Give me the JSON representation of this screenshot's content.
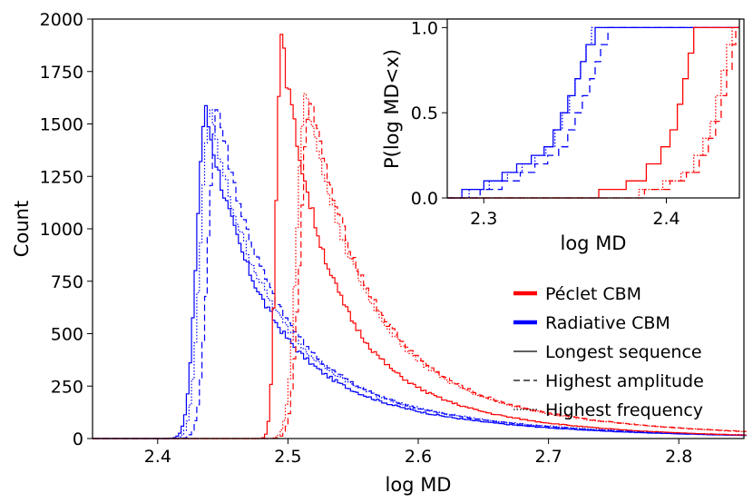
{
  "chart_data": {
    "type": "histogram-step",
    "main": {
      "xlabel": "log MD",
      "ylabel": "Count",
      "xlim": [
        2.35,
        2.85
      ],
      "ylim": [
        0,
        2000
      ],
      "xticks": [
        "2.4",
        "2.5",
        "2.6",
        "2.7",
        "2.8"
      ],
      "xtick_values": [
        2.4,
        2.5,
        2.6,
        2.7,
        2.8
      ],
      "yticks": [
        "0",
        "250",
        "500",
        "750",
        "1000",
        "1250",
        "1500",
        "1750",
        "2000"
      ],
      "ytick_values": [
        0,
        250,
        500,
        750,
        1000,
        1250,
        1500,
        1750,
        2000
      ],
      "series": [
        {
          "name": "Radiative CBM, Longest sequence",
          "color": "#0000ff",
          "style": "solid",
          "peak_x": 2.436,
          "peak_y": 1560,
          "rise": 0.007,
          "decay": 0.038
        },
        {
          "name": "Radiative CBM, Highest amplitude",
          "color": "#0000ff",
          "style": "dashed",
          "peak_x": 2.445,
          "peak_y": 1590,
          "rise": 0.007,
          "decay": 0.038
        },
        {
          "name": "Radiative CBM, Highest frequency",
          "color": "#0000ff",
          "style": "dotted",
          "peak_x": 2.439,
          "peak_y": 1560,
          "rise": 0.007,
          "decay": 0.04
        },
        {
          "name": "Péclet CBM, Longest sequence",
          "color": "#ff0000",
          "style": "solid",
          "peak_x": 2.494,
          "peak_y": 1905,
          "rise": 0.004,
          "decay": 0.032
        },
        {
          "name": "Péclet CBM, Highest amplitude",
          "color": "#ff0000",
          "style": "dashed",
          "peak_x": 2.516,
          "peak_y": 1630,
          "rise": 0.007,
          "decay": 0.04
        },
        {
          "name": "Péclet CBM, Highest frequency",
          "color": "#ff0000",
          "style": "dotted",
          "peak_x": 2.513,
          "peak_y": 1645,
          "rise": 0.007,
          "decay": 0.04
        }
      ]
    },
    "inset": {
      "type": "ecdf",
      "xlabel": "log MD",
      "ylabel": "P(log MD<x)",
      "xlim": [
        2.28,
        2.44
      ],
      "ylim": [
        0,
        1.05
      ],
      "xticks": [
        "2.3",
        "2.4"
      ],
      "xtick_values": [
        2.3,
        2.4
      ],
      "yticks": [
        "0.0",
        "0.5",
        "1.0"
      ],
      "ytick_values": [
        0.0,
        0.5,
        1.0
      ],
      "series": [
        {
          "name": "Radiative CBM, Longest sequence",
          "color": "#0000ff",
          "style": "solid",
          "x": [
            2.288,
            2.3,
            2.31,
            2.318,
            2.326,
            2.333,
            2.338,
            2.342,
            2.346,
            2.35,
            2.353,
            2.356,
            2.361
          ],
          "y": [
            0.05,
            0.1,
            0.15,
            0.2,
            0.25,
            0.3,
            0.4,
            0.5,
            0.6,
            0.7,
            0.8,
            0.9,
            1.0
          ]
        },
        {
          "name": "Radiative CBM, Highest amplitude",
          "color": "#0000ff",
          "style": "dashed",
          "x": [
            2.298,
            2.31,
            2.32,
            2.328,
            2.335,
            2.341,
            2.346,
            2.35,
            2.354,
            2.358,
            2.361,
            2.364,
            2.368
          ],
          "y": [
            0.05,
            0.1,
            0.15,
            0.2,
            0.25,
            0.3,
            0.4,
            0.5,
            0.6,
            0.7,
            0.8,
            0.9,
            1.0
          ]
        },
        {
          "name": "Radiative CBM, Highest frequency",
          "color": "#0000ff",
          "style": "dotted",
          "x": [
            2.292,
            2.303,
            2.313,
            2.321,
            2.328,
            2.334,
            2.339,
            2.343,
            2.347,
            2.35,
            2.353,
            2.356,
            2.359
          ],
          "y": [
            0.05,
            0.1,
            0.15,
            0.2,
            0.25,
            0.3,
            0.4,
            0.5,
            0.6,
            0.7,
            0.8,
            0.9,
            1.0
          ]
        },
        {
          "name": "Péclet CBM, Longest sequence",
          "color": "#ff0000",
          "style": "solid",
          "x": [
            2.363,
            2.378,
            2.389,
            2.397,
            2.402,
            2.406,
            2.409,
            2.412,
            2.415
          ],
          "y": [
            0.05,
            0.1,
            0.2,
            0.3,
            0.4,
            0.55,
            0.7,
            0.85,
            1.0
          ]
        },
        {
          "name": "Péclet CBM, Highest amplitude",
          "color": "#ff0000",
          "style": "dashed",
          "x": [
            2.388,
            2.402,
            2.411,
            2.418,
            2.423,
            2.427,
            2.43,
            2.433,
            2.436,
            2.438
          ],
          "y": [
            0.05,
            0.1,
            0.15,
            0.25,
            0.35,
            0.45,
            0.6,
            0.75,
            0.9,
            1.0
          ]
        },
        {
          "name": "Péclet CBM, Highest frequency",
          "color": "#ff0000",
          "style": "dotted",
          "x": [
            2.385,
            2.398,
            2.408,
            2.415,
            2.42,
            2.424,
            2.427,
            2.43,
            2.433,
            2.436
          ],
          "y": [
            0.05,
            0.1,
            0.15,
            0.25,
            0.35,
            0.45,
            0.6,
            0.75,
            0.9,
            1.0
          ]
        }
      ]
    },
    "legend": {
      "placement": "lower-right",
      "entries": [
        {
          "label": "Péclet CBM",
          "color": "#ff0000",
          "style": "thick"
        },
        {
          "label": "Radiative CBM",
          "color": "#0000ff",
          "style": "thick"
        },
        {
          "label": "Longest sequence",
          "color": "#000000",
          "style": "solid"
        },
        {
          "label": "Highest amplitude",
          "color": "#000000",
          "style": "dashed"
        },
        {
          "label": "Highest frequency",
          "color": "#000000",
          "style": "dotted"
        }
      ]
    }
  }
}
